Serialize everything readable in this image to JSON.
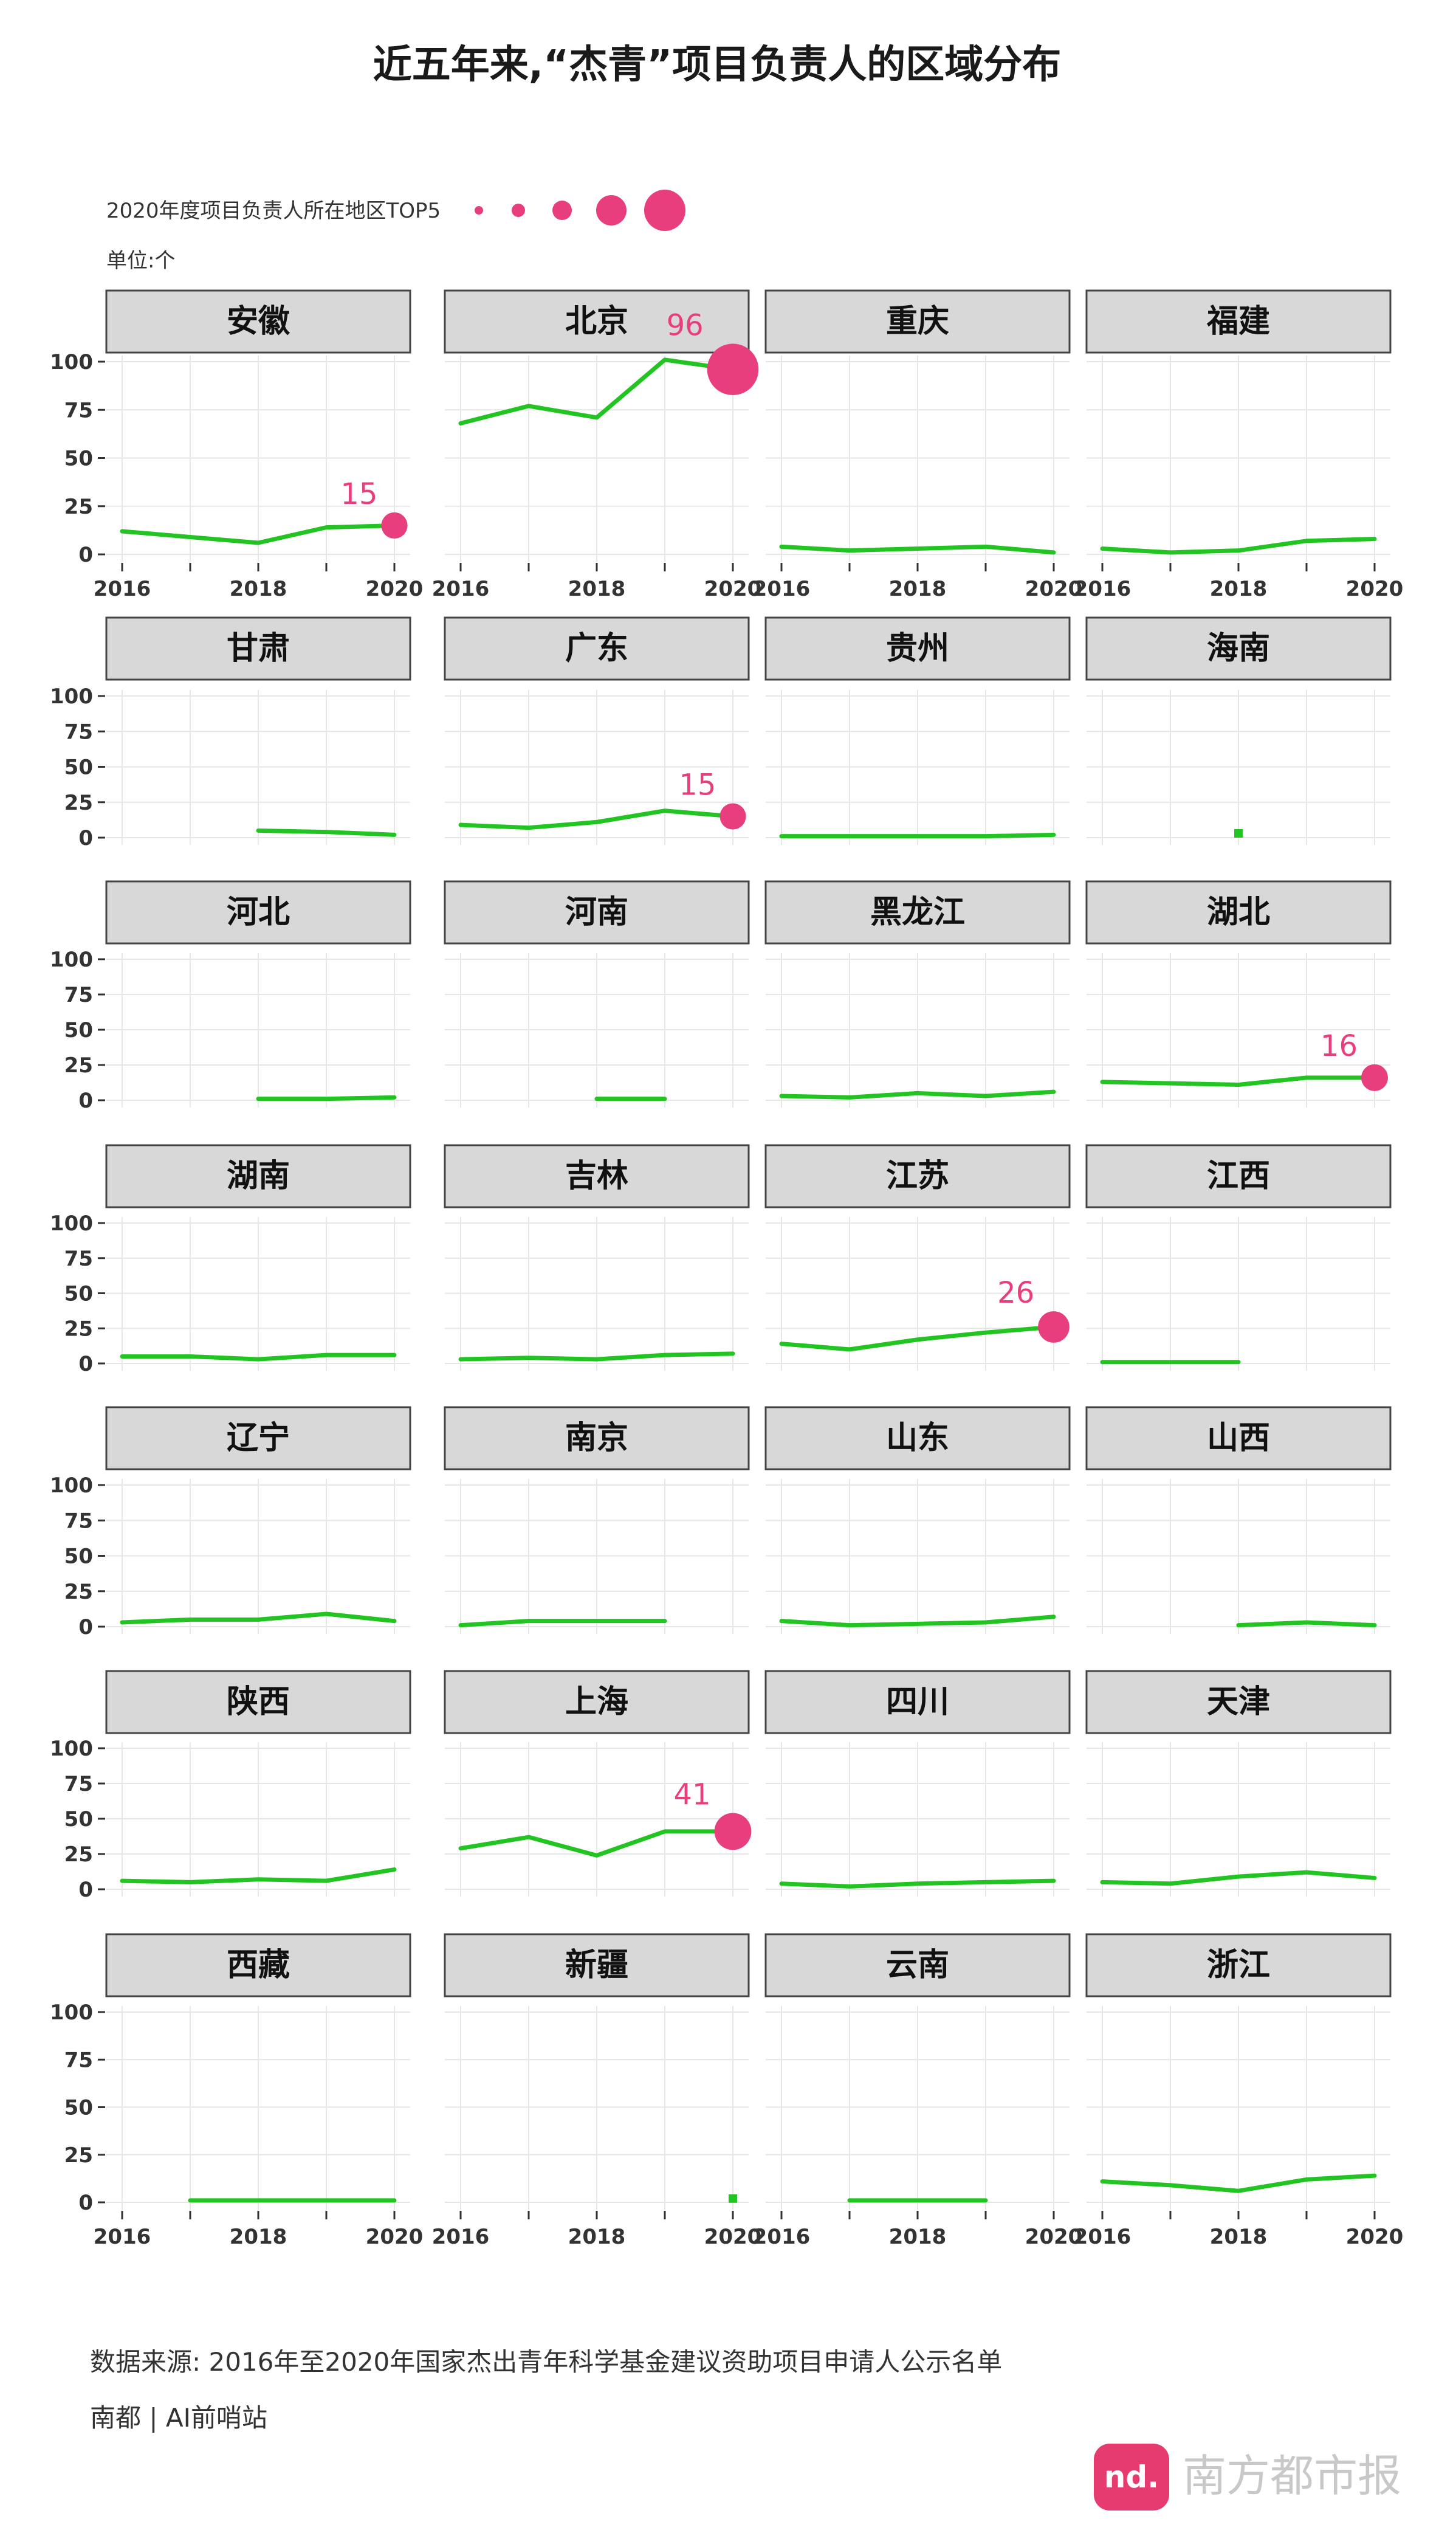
{
  "title": "近五年来,“杰青”项目负责人的区域分布",
  "legend": {
    "label": "2020年度项目负责人所在地区TOP5",
    "dot_color": "#e83e7e"
  },
  "unit_label": "单位:个",
  "colors": {
    "line": "#22c422",
    "highlight": "#e83e7e",
    "panel_header_bg": "#d8d8d8",
    "grid": "#e6e6e6"
  },
  "source": "数据来源: 2016年至2020年国家杰出青年科学基金建议资助项目申请人公示名单",
  "credit": "南都 | AI前哨站",
  "watermark": "南方都市报",
  "chart_data": {
    "type": "line",
    "x": [
      2016,
      2017,
      2018,
      2019,
      2020
    ],
    "x_tick_labels": [
      "2016",
      "2018",
      "2020"
    ],
    "y_ticks": [
      0,
      25,
      50,
      75,
      100
    ],
    "ylim": [
      0,
      100
    ],
    "grid": true,
    "legend_position": "top-left",
    "panels": [
      {
        "name": "安徽",
        "values": [
          12,
          9,
          6,
          14,
          15
        ],
        "top5": 15
      },
      {
        "name": "北京",
        "values": [
          68,
          77,
          71,
          101,
          96
        ],
        "top5": 96
      },
      {
        "name": "重庆",
        "values": [
          4,
          2,
          3,
          4,
          1
        ]
      },
      {
        "name": "福建",
        "values": [
          3,
          1,
          2,
          7,
          8
        ]
      },
      {
        "name": "甘肃",
        "values": [
          null,
          null,
          5,
          4,
          2
        ]
      },
      {
        "name": "广东",
        "values": [
          9,
          7,
          11,
          19,
          15
        ],
        "top5": 15
      },
      {
        "name": "贵州",
        "values": [
          1,
          1,
          1,
          1,
          2
        ]
      },
      {
        "name": "海南",
        "values": [
          null,
          null,
          3,
          null,
          null
        ]
      },
      {
        "name": "河北",
        "values": [
          null,
          null,
          1,
          1,
          2
        ]
      },
      {
        "name": "河南",
        "values": [
          null,
          null,
          1,
          1,
          null
        ]
      },
      {
        "name": "黑龙江",
        "values": [
          3,
          2,
          5,
          3,
          6
        ]
      },
      {
        "name": "湖北",
        "values": [
          13,
          12,
          11,
          16,
          16
        ],
        "top5": 16
      },
      {
        "name": "湖南",
        "values": [
          5,
          5,
          3,
          6,
          6
        ]
      },
      {
        "name": "吉林",
        "values": [
          3,
          4,
          3,
          6,
          7
        ]
      },
      {
        "name": "江苏",
        "values": [
          14,
          10,
          17,
          22,
          26
        ],
        "top5": 26
      },
      {
        "name": "江西",
        "values": [
          1,
          1,
          1,
          null,
          null
        ]
      },
      {
        "name": "辽宁",
        "values": [
          3,
          5,
          5,
          9,
          4
        ]
      },
      {
        "name": "南京",
        "values": [
          1,
          4,
          4,
          4,
          null
        ]
      },
      {
        "name": "山东",
        "values": [
          4,
          1,
          2,
          3,
          7
        ]
      },
      {
        "name": "山西",
        "values": [
          null,
          null,
          1,
          3,
          1
        ]
      },
      {
        "name": "陕西",
        "values": [
          6,
          5,
          7,
          6,
          14
        ]
      },
      {
        "name": "上海",
        "values": [
          29,
          37,
          24,
          41,
          41
        ],
        "top5": 41
      },
      {
        "name": "四川",
        "values": [
          4,
          2,
          4,
          5,
          6
        ]
      },
      {
        "name": "天津",
        "values": [
          5,
          4,
          9,
          12,
          8
        ]
      },
      {
        "name": "西藏",
        "values": [
          null,
          1,
          1,
          1,
          1
        ]
      },
      {
        "name": "新疆",
        "values": [
          null,
          null,
          null,
          null,
          2
        ]
      },
      {
        "name": "云南",
        "values": [
          null,
          1,
          1,
          1,
          null
        ]
      },
      {
        "name": "浙江",
        "values": [
          11,
          9,
          6,
          12,
          14
        ]
      }
    ]
  }
}
